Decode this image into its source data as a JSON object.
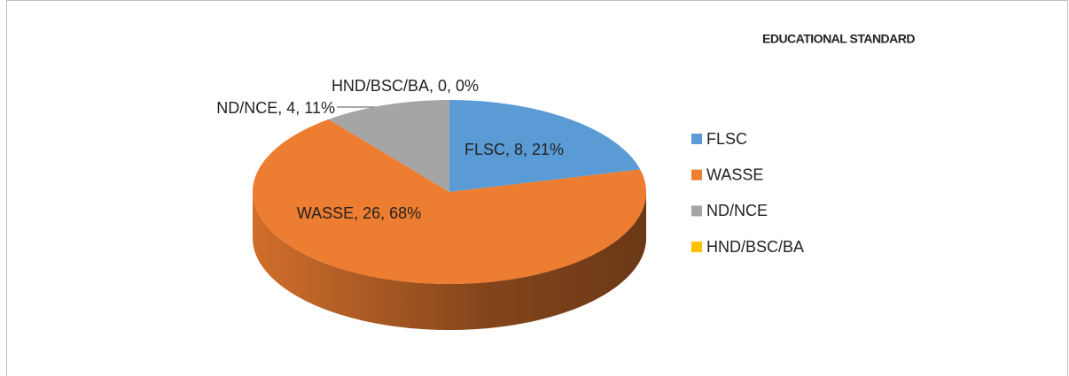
{
  "chart_data": {
    "type": "pie",
    "title": "EDUCATIONAL STANDARD",
    "categories": [
      "FLSC",
      "WASSE",
      "ND/NCE",
      "HND/BSC/BA"
    ],
    "values": [
      8,
      26,
      4,
      0
    ],
    "value_labels": [
      "FLSC, 8, 21%",
      "WASSE, 26, 68%",
      "ND/NCE, 4, 11%",
      "HND/BSC/BA, 0, 0%"
    ],
    "colors": [
      "#5b9bd5",
      "#ed7d31",
      "#a5a5a5",
      "#ffc000"
    ],
    "legend": "right"
  }
}
